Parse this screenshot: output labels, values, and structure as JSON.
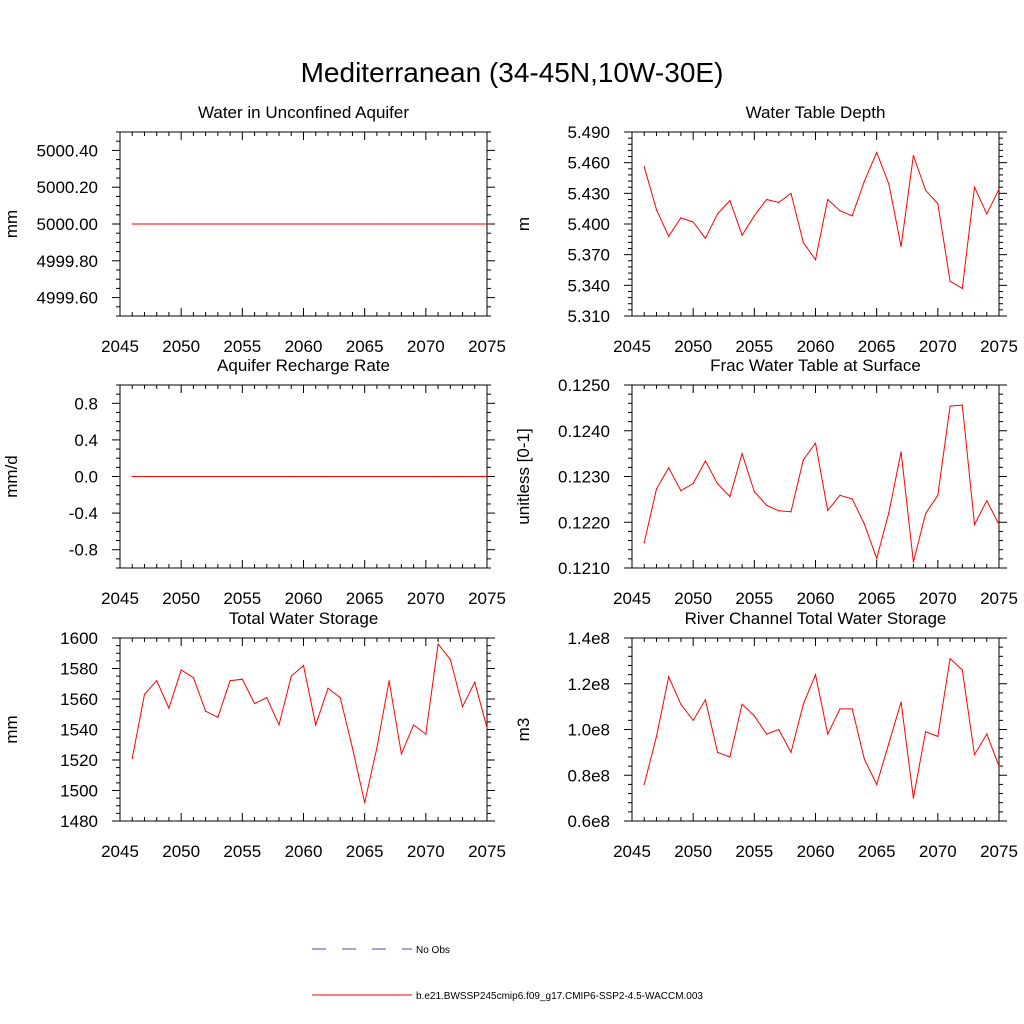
{
  "figure": {
    "title": "Mediterranean (34-45N,10W-30E)"
  },
  "colors": {
    "series": "#ff0000",
    "obs": "#4a4aa8",
    "axis": "#000000"
  },
  "legend": {
    "obs_label": "No Obs",
    "model_label": "b.e21.BWSSP245cmip6.f09_g17.CMIP6-SSP2-4.5-WACCM.003"
  },
  "chart_data": [
    {
      "type": "line",
      "title": "Water in Unconfined Aquifer",
      "ylabel": "mm",
      "xlim": [
        2045,
        2075
      ],
      "ylim": [
        4999.5,
        5000.5
      ],
      "xticks": [
        2045,
        2050,
        2055,
        2060,
        2065,
        2070,
        2075
      ],
      "yticks": [
        4999.6,
        4999.8,
        5000.0,
        5000.2,
        5000.4
      ],
      "ytick_labels": [
        "4999.60",
        "4999.80",
        "5000.00",
        "5000.20",
        "5000.40"
      ],
      "yminor": 4,
      "x": [
        2046,
        2047,
        2048,
        2049,
        2050,
        2051,
        2052,
        2053,
        2054,
        2055,
        2056,
        2057,
        2058,
        2059,
        2060,
        2061,
        2062,
        2063,
        2064,
        2065,
        2066,
        2067,
        2068,
        2069,
        2070,
        2071,
        2072,
        2073,
        2074,
        2075
      ],
      "y": [
        5000,
        5000,
        5000,
        5000,
        5000,
        5000,
        5000,
        5000,
        5000,
        5000,
        5000,
        5000,
        5000,
        5000,
        5000,
        5000,
        5000,
        5000,
        5000,
        5000,
        5000,
        5000,
        5000,
        5000,
        5000,
        5000,
        5000,
        5000,
        5000,
        5000
      ]
    },
    {
      "type": "line",
      "title": "Water Table Depth",
      "ylabel": "m",
      "xlim": [
        2045,
        2075
      ],
      "ylim": [
        5.31,
        5.49
      ],
      "xticks": [
        2045,
        2050,
        2055,
        2060,
        2065,
        2070,
        2075
      ],
      "yticks": [
        5.31,
        5.34,
        5.37,
        5.4,
        5.43,
        5.46,
        5.49
      ],
      "ytick_labels": [
        "5.310",
        "5.340",
        "5.370",
        "5.400",
        "5.430",
        "5.460",
        "5.490"
      ],
      "yminor": 5,
      "x": [
        2046,
        2047,
        2048,
        2049,
        2050,
        2051,
        2052,
        2053,
        2054,
        2055,
        2056,
        2057,
        2058,
        2059,
        2060,
        2061,
        2062,
        2063,
        2064,
        2065,
        2066,
        2067,
        2068,
        2069,
        2070,
        2071,
        2072,
        2073,
        2074,
        2075
      ],
      "y": [
        5.456,
        5.414,
        5.388,
        5.406,
        5.402,
        5.386,
        5.41,
        5.423,
        5.389,
        5.408,
        5.424,
        5.421,
        5.43,
        5.382,
        5.365,
        5.424,
        5.413,
        5.408,
        5.442,
        5.47,
        5.439,
        5.378,
        5.467,
        5.433,
        5.42,
        5.344,
        5.337,
        5.436,
        5.41,
        5.434
      ]
    },
    {
      "type": "line",
      "title": "Aquifer Recharge Rate",
      "ylabel": "mm/d",
      "xlim": [
        2045,
        2075
      ],
      "ylim": [
        -1.0,
        1.0
      ],
      "xticks": [
        2045,
        2050,
        2055,
        2060,
        2065,
        2070,
        2075
      ],
      "yticks": [
        -0.8,
        -0.4,
        0.0,
        0.4,
        0.8
      ],
      "ytick_labels": [
        "-0.8",
        "-0.4",
        "0.0",
        "0.4",
        "0.8"
      ],
      "yminor": 4,
      "x": [
        2046,
        2047,
        2048,
        2049,
        2050,
        2051,
        2052,
        2053,
        2054,
        2055,
        2056,
        2057,
        2058,
        2059,
        2060,
        2061,
        2062,
        2063,
        2064,
        2065,
        2066,
        2067,
        2068,
        2069,
        2070,
        2071,
        2072,
        2073,
        2074,
        2075
      ],
      "y": [
        0,
        0,
        0,
        0,
        0,
        0,
        0,
        0,
        0,
        0,
        0,
        0,
        0,
        0,
        0,
        0,
        0,
        0,
        0,
        0,
        0,
        0,
        0,
        0,
        0,
        0,
        0,
        0,
        0,
        0
      ]
    },
    {
      "type": "line",
      "title": "Frac Water Table at Surface",
      "ylabel": "unitless [0-1]",
      "xlim": [
        2045,
        2075
      ],
      "ylim": [
        0.121,
        0.125
      ],
      "xticks": [
        2045,
        2050,
        2055,
        2060,
        2065,
        2070,
        2075
      ],
      "yticks": [
        0.121,
        0.122,
        0.123,
        0.124,
        0.125
      ],
      "ytick_labels": [
        "0.1210",
        "0.1220",
        "0.1230",
        "0.1240",
        "0.1250"
      ],
      "yminor": 5,
      "x": [
        2046,
        2047,
        2048,
        2049,
        2050,
        2051,
        2052,
        2053,
        2054,
        2055,
        2056,
        2057,
        2058,
        2059,
        2060,
        2061,
        2062,
        2063,
        2064,
        2065,
        2066,
        2067,
        2068,
        2069,
        2070,
        2071,
        2072,
        2073,
        2074,
        2075
      ],
      "y": [
        0.12155,
        0.12273,
        0.12319,
        0.12269,
        0.12285,
        0.12334,
        0.12284,
        0.12256,
        0.1235,
        0.12267,
        0.12237,
        0.12225,
        0.12223,
        0.12336,
        0.12373,
        0.12226,
        0.12259,
        0.12251,
        0.12196,
        0.12121,
        0.12221,
        0.12354,
        0.12113,
        0.12219,
        0.12259,
        0.12454,
        0.12456,
        0.12195,
        0.12247,
        0.12195
      ]
    },
    {
      "type": "line",
      "title": "Total Water Storage",
      "ylabel": "mm",
      "xlim": [
        2045,
        2075
      ],
      "ylim": [
        1480,
        1600
      ],
      "xticks": [
        2045,
        2050,
        2055,
        2060,
        2065,
        2070,
        2075
      ],
      "yticks": [
        1480,
        1500,
        1520,
        1540,
        1560,
        1580,
        1600
      ],
      "ytick_labels": [
        "1480",
        "1500",
        "1520",
        "1540",
        "1560",
        "1580",
        "1600"
      ],
      "yminor": 4,
      "x": [
        2046,
        2047,
        2048,
        2049,
        2050,
        2051,
        2052,
        2053,
        2054,
        2055,
        2056,
        2057,
        2058,
        2059,
        2060,
        2061,
        2062,
        2063,
        2064,
        2065,
        2066,
        2067,
        2068,
        2069,
        2070,
        2071,
        2072,
        2073,
        2074,
        2075
      ],
      "y": [
        1521,
        1563,
        1572,
        1554,
        1579,
        1574,
        1552,
        1548,
        1572,
        1573,
        1557,
        1561,
        1543,
        1575,
        1582,
        1543,
        1567,
        1561,
        1528,
        1492,
        1528,
        1572,
        1524,
        1543,
        1537,
        1596,
        1586,
        1555,
        1571,
        1541
      ]
    },
    {
      "type": "line",
      "title": "River Channel Total Water Storage",
      "ylabel": "m3",
      "xlim": [
        2045,
        2075
      ],
      "ylim": [
        60000000,
        140000000
      ],
      "xticks": [
        2045,
        2050,
        2055,
        2060,
        2065,
        2070,
        2075
      ],
      "yticks": [
        60000000,
        80000000,
        100000000,
        120000000,
        140000000
      ],
      "ytick_labels": [
        "0.6e8",
        "0.8e8",
        "1.0e8",
        "1.2e8",
        "1.4e8"
      ],
      "yminor": 5,
      "x": [
        2046,
        2047,
        2048,
        2049,
        2050,
        2051,
        2052,
        2053,
        2054,
        2055,
        2056,
        2057,
        2058,
        2059,
        2060,
        2061,
        2062,
        2063,
        2064,
        2065,
        2066,
        2067,
        2068,
        2069,
        2070,
        2071,
        2072,
        2073,
        2074,
        2075
      ],
      "y": [
        76000000,
        97000000,
        123000000,
        111000000,
        104000000,
        113000000,
        90000000,
        88000000,
        111000000,
        106000000,
        98000000,
        100000000,
        90000000,
        111000000,
        124000000,
        98000000,
        109000000,
        109000000,
        87000000,
        76000000,
        94000000,
        112000000,
        70000000,
        99000000,
        97000000,
        131000000,
        126000000,
        89000000,
        98000000,
        84000000
      ]
    }
  ]
}
